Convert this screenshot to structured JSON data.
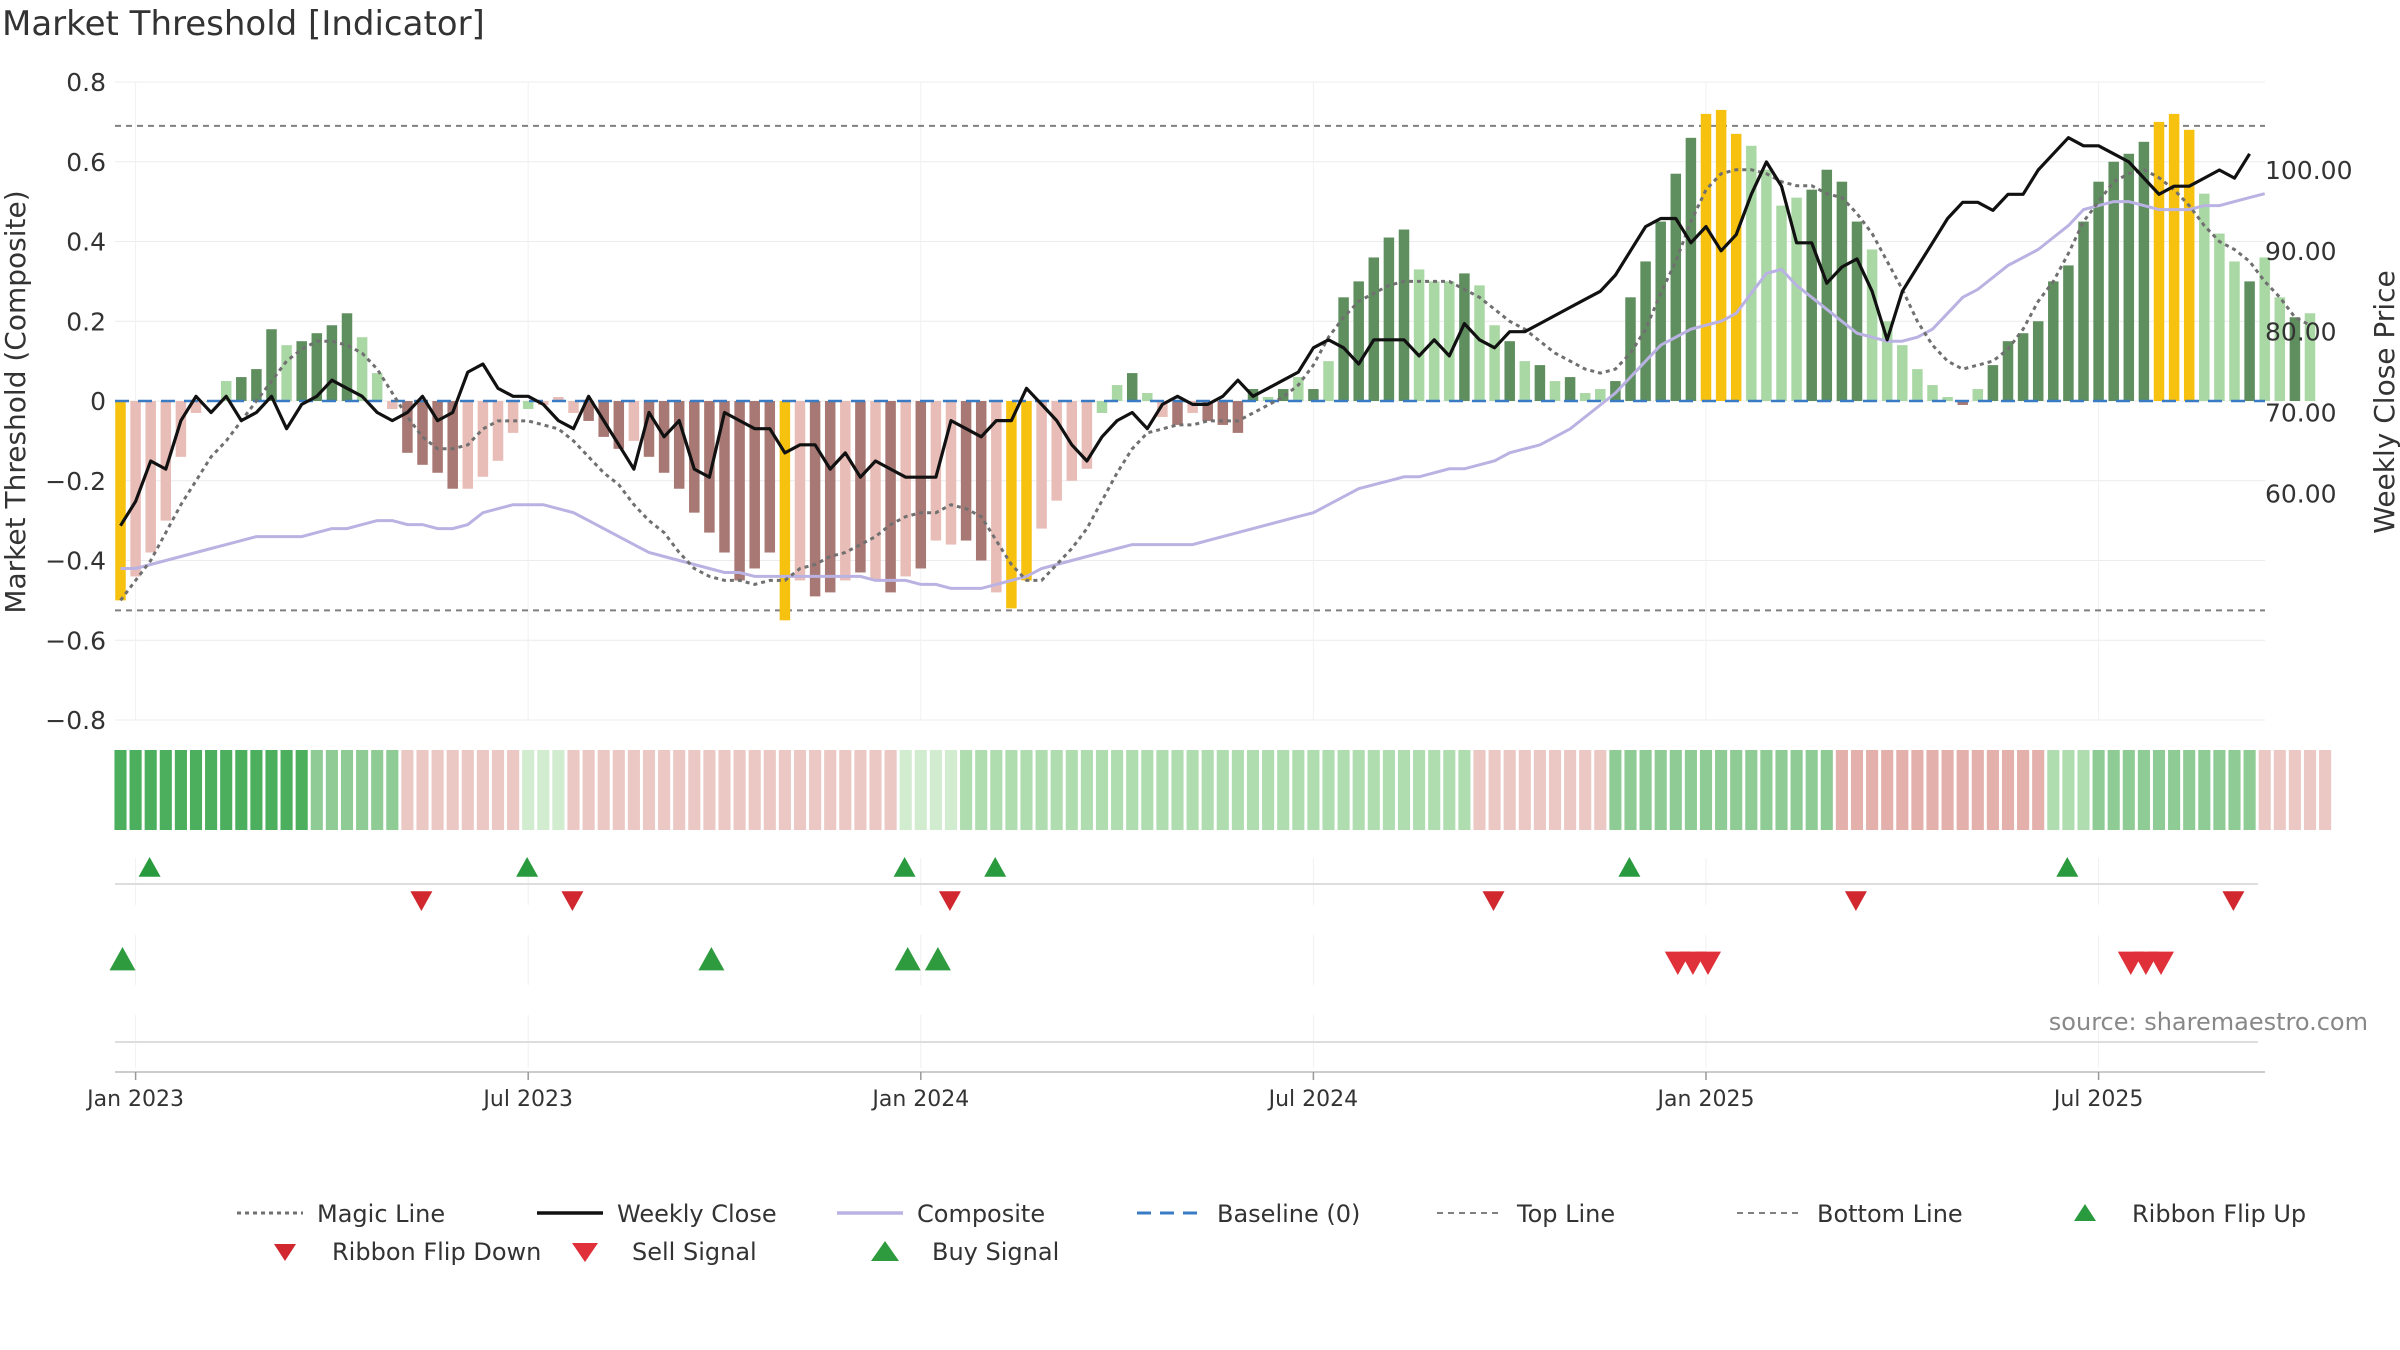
{
  "title": "Market Threshold [Indicator]",
  "source": "source: sharemaestro.com",
  "colors": {
    "bar_dark_green": "#5f8f5f",
    "bar_light_green": "#a9d8a4",
    "bar_dark_red": "#a87874",
    "bar_light_red": "#e9bdb7",
    "bar_gold": "#f6c10f",
    "magic_line": "#707070",
    "weekly_close": "#111111",
    "composite": "#b9b2e2",
    "baseline": "#3a7cc4",
    "threshold": "#808080",
    "flip_up": "#2a9a3f",
    "flip_down": "#d0282e",
    "sell": "#e0303a",
    "buy": "#2e9b3e"
  },
  "legend": [
    {
      "key": "magic",
      "label": "Magic Line"
    },
    {
      "key": "close",
      "label": "Weekly Close"
    },
    {
      "key": "composite",
      "label": "Composite"
    },
    {
      "key": "baseline",
      "label": "Baseline (0)"
    },
    {
      "key": "top",
      "label": "Top Line"
    },
    {
      "key": "bottom",
      "label": "Bottom Line"
    },
    {
      "key": "flipup",
      "label": "Ribbon Flip Up"
    },
    {
      "key": "flipdown",
      "label": "Ribbon Flip Down"
    },
    {
      "key": "sell",
      "label": "Sell Signal"
    },
    {
      "key": "buy",
      "label": "Buy Signal"
    }
  ],
  "chart_data": {
    "type": "bar",
    "ylabel_left": "Market Threshold (Composite)",
    "ylabel_right": "Weekly Close Price",
    "ylim_left": [
      -0.8,
      0.8
    ],
    "yticks_left": [
      "0.8",
      "0.6",
      "0.4",
      "0.2",
      "0",
      "−0.2",
      "−0.4",
      "−0.6",
      "−0.8"
    ],
    "ylim_right": [
      54,
      106
    ],
    "yticks_right": [
      "100.00",
      "90.00",
      "80.00",
      "70.00",
      "60.00"
    ],
    "x_ticks": [
      "Jan 2023",
      "Jul 2023",
      "Jan 2024",
      "Jul 2024",
      "Jan 2025",
      "Jul 2025"
    ],
    "x_tick_weeks": [
      1,
      27,
      53,
      79,
      105,
      131
    ],
    "top_line": 0.69,
    "bottom_line": -0.525,
    "grid": true,
    "legend_position": "bottom",
    "composite_bars": [
      -0.5,
      -0.44,
      -0.38,
      -0.3,
      -0.14,
      -0.03,
      0.0,
      0.05,
      0.06,
      0.08,
      0.18,
      0.14,
      0.15,
      0.17,
      0.19,
      0.22,
      0.16,
      0.07,
      -0.02,
      -0.13,
      -0.16,
      -0.18,
      -0.22,
      -0.22,
      -0.19,
      -0.15,
      -0.08,
      -0.02,
      -0.01,
      0.01,
      -0.03,
      -0.05,
      -0.09,
      -0.12,
      -0.1,
      -0.14,
      -0.18,
      -0.22,
      -0.28,
      -0.33,
      -0.38,
      -0.45,
      -0.42,
      -0.38,
      -0.55,
      -0.45,
      -0.49,
      -0.48,
      -0.45,
      -0.43,
      -0.45,
      -0.48,
      -0.44,
      -0.42,
      -0.35,
      -0.36,
      -0.35,
      -0.4,
      -0.48,
      -0.52,
      -0.45,
      -0.32,
      -0.25,
      -0.2,
      -0.17,
      -0.03,
      0.04,
      0.07,
      0.02,
      -0.04,
      -0.06,
      -0.03,
      -0.05,
      -0.06,
      -0.08,
      0.03,
      0.01,
      0.03,
      0.06,
      0.03,
      0.1,
      0.26,
      0.3,
      0.36,
      0.41,
      0.43,
      0.33,
      0.3,
      0.3,
      0.32,
      0.29,
      0.19,
      0.15,
      0.1,
      0.09,
      0.05,
      0.06,
      0.02,
      0.03,
      0.05,
      0.26,
      0.35,
      0.45,
      0.57,
      0.66,
      0.72,
      0.73,
      0.67,
      0.64,
      0.58,
      0.49,
      0.51,
      0.53,
      0.58,
      0.55,
      0.45,
      0.38,
      0.2,
      0.14,
      0.08,
      0.04,
      0.01,
      -0.01,
      0.03,
      0.09,
      0.15,
      0.17,
      0.2,
      0.3,
      0.34,
      0.45,
      0.55,
      0.6,
      0.62,
      0.65,
      0.7,
      0.72,
      0.68,
      0.52,
      0.42,
      0.35,
      0.3,
      0.36,
      0.26,
      0.21,
      0.22
    ],
    "bar_colors": [
      "G",
      "LR",
      "LR",
      "LR",
      "LR",
      "LR",
      "LG",
      "LG",
      "DG",
      "DG",
      "DG",
      "LG",
      "DG",
      "DG",
      "DG",
      "DG",
      "LG",
      "LG",
      "LR",
      "DR",
      "DR",
      "DR",
      "DR",
      "LR",
      "LR",
      "LR",
      "LR",
      "LG",
      "LR",
      "LR",
      "LR",
      "DR",
      "DR",
      "DR",
      "LR",
      "DR",
      "DR",
      "DR",
      "DR",
      "DR",
      "DR",
      "DR",
      "DR",
      "DR",
      "G",
      "LR",
      "DR",
      "DR",
      "LR",
      "DR",
      "LR",
      "DR",
      "LR",
      "DR",
      "LR",
      "LR",
      "DR",
      "DR",
      "LR",
      "G",
      "G",
      "LR",
      "LR",
      "LR",
      "LR",
      "LG",
      "LG",
      "DG",
      "LG",
      "LR",
      "DR",
      "LR",
      "DR",
      "DR",
      "DR",
      "DG",
      "LG",
      "DG",
      "LG",
      "DG",
      "LG",
      "DG",
      "DG",
      "DG",
      "DG",
      "DG",
      "LG",
      "LG",
      "LG",
      "DG",
      "LG",
      "LG",
      "DG",
      "LG",
      "DG",
      "LG",
      "DG",
      "LG",
      "LG",
      "DG",
      "DG",
      "DG",
      "DG",
      "DG",
      "DG",
      "G",
      "G",
      "G",
      "LG",
      "LG",
      "LG",
      "LG",
      "DG",
      "DG",
      "DG",
      "DG",
      "LG",
      "LG",
      "LG",
      "LG",
      "LG",
      "LG",
      "DR",
      "LG",
      "DG",
      "DG",
      "DG",
      "DG",
      "DG",
      "DG",
      "DG",
      "DG",
      "DG",
      "DG",
      "DG",
      "G",
      "G",
      "G",
      "LG",
      "LG",
      "LG",
      "DG",
      "LG",
      "LG",
      "DG",
      "LG",
      "DG"
    ],
    "weekly_close": [
      56,
      59,
      64,
      63,
      69,
      72,
      70,
      72,
      69,
      70,
      72,
      68,
      71,
      72,
      74,
      73,
      72,
      70,
      69,
      70,
      72,
      69,
      70,
      75,
      76,
      73,
      72,
      72,
      71,
      69,
      68,
      72,
      69,
      66,
      63,
      70,
      67,
      69,
      63,
      62,
      70,
      69,
      68,
      68,
      65,
      66,
      66,
      63,
      65,
      62,
      64,
      63,
      62,
      62,
      62,
      69,
      68,
      67,
      69,
      69,
      73,
      71,
      69,
      66,
      64,
      67,
      69,
      70,
      68,
      71,
      72,
      71,
      71,
      72,
      74,
      72,
      73,
      74,
      75,
      78,
      79,
      78,
      76,
      79,
      79,
      79,
      77,
      79,
      77,
      81,
      79,
      78,
      80,
      80,
      81,
      82,
      83,
      84,
      85,
      87,
      90,
      93,
      94,
      94,
      91,
      93,
      90,
      92,
      97,
      101,
      98,
      91,
      91,
      86,
      88,
      89,
      85,
      79,
      85,
      88,
      91,
      94,
      96,
      96,
      95,
      97,
      97,
      100,
      102,
      104,
      103,
      103,
      102,
      101,
      99,
      97,
      98,
      98,
      99,
      100,
      99,
      102
    ],
    "composite_line": [
      -0.42,
      -0.42,
      -0.41,
      -0.4,
      -0.39,
      -0.38,
      -0.37,
      -0.36,
      -0.35,
      -0.34,
      -0.34,
      -0.34,
      -0.34,
      -0.33,
      -0.32,
      -0.32,
      -0.31,
      -0.3,
      -0.3,
      -0.31,
      -0.31,
      -0.32,
      -0.32,
      -0.31,
      -0.28,
      -0.27,
      -0.26,
      -0.26,
      -0.26,
      -0.27,
      -0.28,
      -0.3,
      -0.32,
      -0.34,
      -0.36,
      -0.38,
      -0.39,
      -0.4,
      -0.41,
      -0.42,
      -0.43,
      -0.43,
      -0.44,
      -0.44,
      -0.44,
      -0.44,
      -0.44,
      -0.44,
      -0.44,
      -0.44,
      -0.45,
      -0.45,
      -0.45,
      -0.46,
      -0.46,
      -0.47,
      -0.47,
      -0.47,
      -0.46,
      -0.45,
      -0.44,
      -0.42,
      -0.41,
      -0.4,
      -0.39,
      -0.38,
      -0.37,
      -0.36,
      -0.36,
      -0.36,
      -0.36,
      -0.36,
      -0.35,
      -0.34,
      -0.33,
      -0.32,
      -0.31,
      -0.3,
      -0.29,
      -0.28,
      -0.26,
      -0.24,
      -0.22,
      -0.21,
      -0.2,
      -0.19,
      -0.19,
      -0.18,
      -0.17,
      -0.17,
      -0.16,
      -0.15,
      -0.13,
      -0.12,
      -0.11,
      -0.09,
      -0.07,
      -0.04,
      -0.01,
      0.02,
      0.06,
      0.1,
      0.14,
      0.16,
      0.18,
      0.19,
      0.2,
      0.22,
      0.27,
      0.32,
      0.33,
      0.29,
      0.26,
      0.23,
      0.2,
      0.17,
      0.16,
      0.15,
      0.15,
      0.16,
      0.18,
      0.22,
      0.26,
      0.28,
      0.31,
      0.34,
      0.36,
      0.38,
      0.41,
      0.44,
      0.48,
      0.49,
      0.5,
      0.5,
      0.49,
      0.48,
      0.48,
      0.48,
      0.49,
      0.49,
      0.5,
      0.51,
      0.52
    ],
    "magic_line": [
      -0.5,
      -0.45,
      -0.4,
      -0.33,
      -0.26,
      -0.2,
      -0.14,
      -0.1,
      -0.05,
      0.0,
      0.05,
      0.1,
      0.13,
      0.15,
      0.15,
      0.14,
      0.12,
      0.08,
      0.02,
      -0.04,
      -0.09,
      -0.12,
      -0.12,
      -0.11,
      -0.07,
      -0.05,
      -0.05,
      -0.05,
      -0.06,
      -0.07,
      -0.1,
      -0.14,
      -0.18,
      -0.21,
      -0.26,
      -0.3,
      -0.33,
      -0.38,
      -0.42,
      -0.44,
      -0.45,
      -0.45,
      -0.46,
      -0.45,
      -0.45,
      -0.42,
      -0.41,
      -0.39,
      -0.38,
      -0.36,
      -0.34,
      -0.31,
      -0.29,
      -0.28,
      -0.28,
      -0.26,
      -0.27,
      -0.29,
      -0.35,
      -0.41,
      -0.45,
      -0.45,
      -0.41,
      -0.37,
      -0.32,
      -0.25,
      -0.18,
      -0.12,
      -0.08,
      -0.07,
      -0.06,
      -0.06,
      -0.05,
      -0.05,
      -0.05,
      -0.03,
      -0.01,
      0.01,
      0.04,
      0.09,
      0.16,
      0.21,
      0.25,
      0.27,
      0.29,
      0.3,
      0.3,
      0.3,
      0.3,
      0.28,
      0.26,
      0.23,
      0.2,
      0.18,
      0.15,
      0.12,
      0.1,
      0.08,
      0.07,
      0.08,
      0.12,
      0.18,
      0.27,
      0.35,
      0.45,
      0.53,
      0.57,
      0.58,
      0.58,
      0.57,
      0.55,
      0.54,
      0.54,
      0.52,
      0.51,
      0.47,
      0.42,
      0.35,
      0.28,
      0.2,
      0.14,
      0.1,
      0.08,
      0.09,
      0.1,
      0.13,
      0.18,
      0.25,
      0.3,
      0.37,
      0.45,
      0.5,
      0.55,
      0.57,
      0.58,
      0.56,
      0.53,
      0.49,
      0.44,
      0.4,
      0.38,
      0.35,
      0.3,
      0.26,
      0.21,
      0.19
    ],
    "ribbon": [
      "DG",
      "DG",
      "DG",
      "DG",
      "DG",
      "DG",
      "DG",
      "DG",
      "DG",
      "DG",
      "DG",
      "DG",
      "DG",
      "MG",
      "MG",
      "MG",
      "MG",
      "MG",
      "MG",
      "LR",
      "LR",
      "LR",
      "LR",
      "LR",
      "LR",
      "LR",
      "LR",
      "VLG",
      "VLG",
      "VLG",
      "LR",
      "LR",
      "LR",
      "LR",
      "LR",
      "LR",
      "LR",
      "LR",
      "LR",
      "LR",
      "LR",
      "LR",
      "LR",
      "LR",
      "LR",
      "LR",
      "LR",
      "LR",
      "LR",
      "LR",
      "LR",
      "LR",
      "VLG",
      "VLG",
      "VLG",
      "VLG",
      "LG",
      "LG",
      "LG",
      "LG",
      "LG",
      "LG",
      "LG",
      "LG",
      "LG",
      "LG",
      "LG",
      "LG",
      "LG",
      "LG",
      "LG",
      "LG",
      "LG",
      "LG",
      "LG",
      "LG",
      "LG",
      "LG",
      "LG",
      "LG",
      "LG",
      "LG",
      "LG",
      "LG",
      "LG",
      "LG",
      "LG",
      "LG",
      "LG",
      "LG",
      "LR",
      "LR",
      "LR",
      "LR",
      "LR",
      "LR",
      "LR",
      "LR",
      "LR",
      "MG",
      "MG",
      "MG",
      "MG",
      "MG",
      "MG",
      "MG",
      "MG",
      "MG",
      "MG",
      "MG",
      "MG",
      "MG",
      "MG",
      "MG",
      "MR",
      "MR",
      "MR",
      "MR",
      "MR",
      "MR",
      "MR",
      "MR",
      "MR",
      "MR",
      "MR",
      "MR",
      "MR",
      "MR",
      "LG",
      "LG",
      "LG",
      "MG",
      "MG",
      "MG",
      "MG",
      "MG",
      "MG",
      "MG",
      "MG",
      "MG",
      "MG",
      "MG",
      "LR",
      "LR",
      "LR",
      "LR",
      "LR"
    ],
    "ribbon_flip_up_weeks": [
      1,
      26,
      51,
      57,
      99,
      128
    ],
    "ribbon_flip_down_weeks": [
      19,
      29,
      54,
      90,
      114,
      139
    ],
    "buy_signal_weeks": [
      0,
      39,
      52,
      54
    ],
    "sell_signal_weeks": [
      103,
      104,
      105,
      133,
      134,
      135
    ]
  }
}
